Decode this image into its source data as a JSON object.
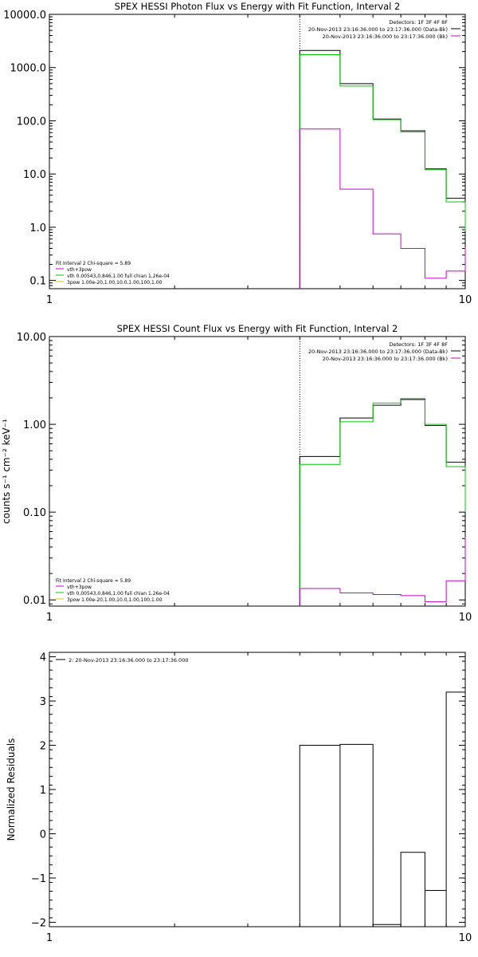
{
  "chart_data": [
    {
      "type": "line",
      "title": "SPEX HESSI Photon Flux vs Energy with Fit Function, Interval 2",
      "xscale": "log",
      "yscale": "log",
      "xlim": [
        1,
        10
      ],
      "ylim": [
        0.07,
        10000
      ],
      "x_ticks": [
        {
          "v": 1,
          "label": "1"
        },
        {
          "v": 10,
          "label": "10"
        }
      ],
      "y_ticks": [
        {
          "v": 0.1,
          "label": "0.1"
        },
        {
          "v": 1,
          "label": "1.0"
        },
        {
          "v": 10,
          "label": "10.0"
        },
        {
          "v": 100,
          "label": "100.0"
        },
        {
          "v": 1000,
          "label": "1000.0"
        },
        {
          "v": 10000,
          "label": "10000.0"
        }
      ],
      "edges": [
        4,
        5,
        6,
        7,
        8,
        9,
        10
      ],
      "dotted_x": 4,
      "series": [
        {
          "name": "",
          "color": "#000000",
          "values": [
            2100,
            500,
            108,
            65,
            12.5,
            3.5,
            1.4
          ]
        },
        {
          "name": "",
          "color": "#00cc00",
          "values": [
            1750,
            450,
            105,
            62,
            12.0,
            3.0,
            0.85
          ]
        },
        {
          "name": "",
          "color": "#cc00cc",
          "values": [
            70,
            5.2,
            0.75,
            0.4,
            0.11,
            0.15,
            0.42
          ]
        }
      ],
      "legend_top": [
        {
          "text": "Detectors: 1F 3F 4F 8F",
          "color": ""
        },
        {
          "text": "20-Nov-2013 23:16:36.000 to 23:17:36.000 (Data-Bk)",
          "color": "#000000"
        },
        {
          "text": "20-Nov-2013 23:16:36.000 to 23:17:36.000 (Bk)",
          "color": "#cc00cc"
        }
      ],
      "legend_bottom": [
        {
          "text": "Fit Interval 2   Chi-square = 5.89",
          "color": ""
        },
        {
          "text": "vth+3pow",
          "color": "#cc00cc"
        },
        {
          "text": "vth 0.00543,0.846,1.00   full chian 1.26e-04",
          "color": "#00cc00"
        },
        {
          "text": "3pow 1.00e-20,1.00,10.0,1.00,100,1.00",
          "color": "#cccc00"
        }
      ]
    },
    {
      "type": "line",
      "title": "SPEX HESSI Count Flux vs Energy with Fit Function, Interval 2",
      "ylabel": "counts s⁻¹ cm⁻² keV⁻¹",
      "xscale": "log",
      "yscale": "log",
      "xlim": [
        1,
        10
      ],
      "ylim": [
        0.0085,
        10
      ],
      "x_ticks": [
        {
          "v": 1,
          "label": "1"
        },
        {
          "v": 10,
          "label": "10"
        }
      ],
      "y_ticks": [
        {
          "v": 0.01,
          "label": "0.01"
        },
        {
          "v": 0.1,
          "label": "0.10"
        },
        {
          "v": 1,
          "label": "1.00"
        },
        {
          "v": 10,
          "label": "10.00"
        }
      ],
      "edges": [
        4,
        5,
        6,
        7,
        8,
        9,
        10
      ],
      "dotted_x": 4,
      "series": [
        {
          "name": "",
          "color": "#000000",
          "values": [
            0.43,
            1.18,
            1.65,
            1.95,
            0.97,
            0.37,
            0.165
          ]
        },
        {
          "name": "",
          "color": "#00cc00",
          "values": [
            0.35,
            1.07,
            1.75,
            1.9,
            1.0,
            0.33,
            0.1
          ]
        },
        {
          "name": "",
          "color": "#cc00cc",
          "values": [
            0.0135,
            0.012,
            0.0115,
            0.0112,
            0.0095,
            0.0165,
            0.052
          ]
        }
      ],
      "legend_top": [
        {
          "text": "Detectors: 1F 3F 4F 8F",
          "color": ""
        },
        {
          "text": "20-Nov-2013 23:16:36.000 to 23:17:36.000 (Data-Bk)",
          "color": "#000000"
        },
        {
          "text": "20-Nov-2013 23:16:36.000 to 23:17:36.000 (Bk)",
          "color": "#cc00cc"
        }
      ],
      "legend_bottom": [
        {
          "text": "Fit Interval 2   Chi-square = 5.89",
          "color": ""
        },
        {
          "text": "vth+3pow",
          "color": "#cc00cc"
        },
        {
          "text": "vth 0.00543,0.846,1.00   full chian 1.26e-04",
          "color": "#00cc00"
        },
        {
          "text": "3pow 1.00e-20,1.00,10.0,1.00,100,1.00",
          "color": "#cccc00"
        }
      ]
    },
    {
      "type": "line",
      "title": "",
      "ylabel": "Normalized Residuals",
      "xscale": "log",
      "yscale": "linear",
      "xlim": [
        1,
        10
      ],
      "ylim": [
        -2.1,
        4.1
      ],
      "x_ticks": [
        {
          "v": 1,
          "label": "1"
        },
        {
          "v": 10,
          "label": "10"
        }
      ],
      "y_ticks": [
        {
          "v": -2,
          "label": "−2"
        },
        {
          "v": -1,
          "label": "−1"
        },
        {
          "v": 0,
          "label": "0"
        },
        {
          "v": 1,
          "label": "1"
        },
        {
          "v": 2,
          "label": "2"
        },
        {
          "v": 3,
          "label": "3"
        },
        {
          "v": 4,
          "label": "4"
        }
      ],
      "edges": [
        4,
        5,
        6,
        7,
        8,
        9,
        10
      ],
      "residual": true,
      "series": [
        {
          "name": "",
          "color": "#000000",
          "values": [
            2.0,
            2.02,
            -2.05,
            -0.42,
            -1.28,
            3.2,
            1.92
          ]
        }
      ],
      "legend_top": [
        {
          "text": "2: 20-Nov-2013 23:16:36.000 to 23:17:36.000",
          "color": "#000000"
        }
      ],
      "legend_bottom": []
    }
  ]
}
